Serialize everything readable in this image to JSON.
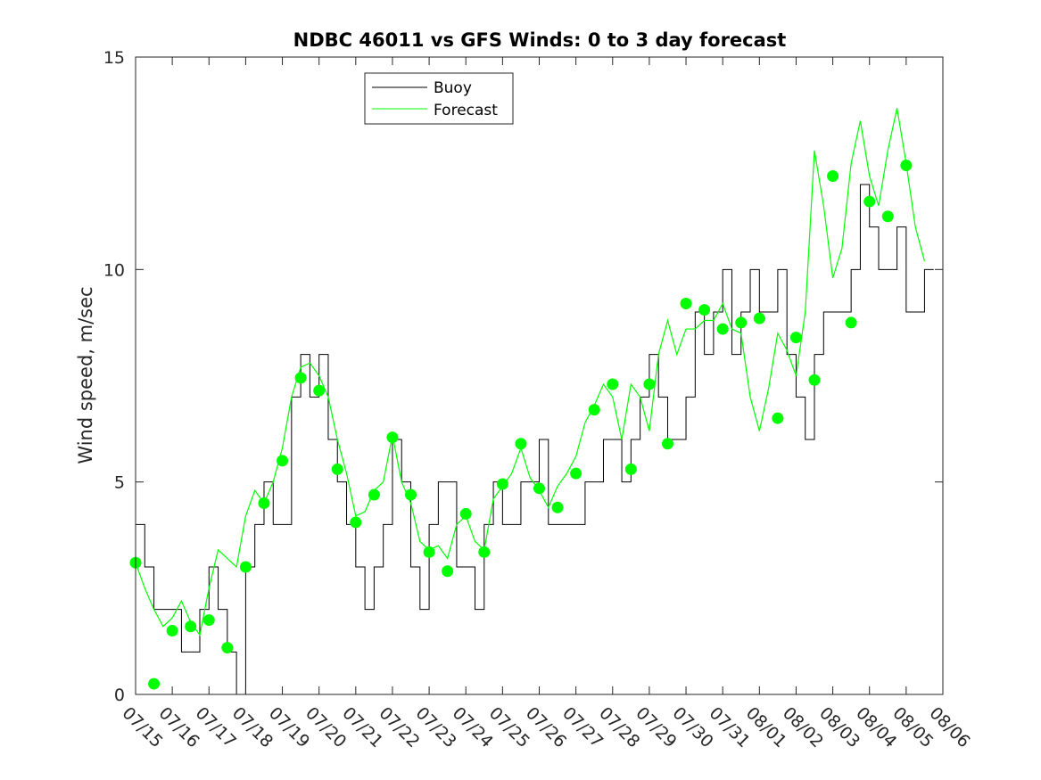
{
  "chart_data": {
    "type": "line",
    "title": "NDBC 46011 vs GFS Winds: 0 to 3 day forecast",
    "ylabel": "Wind speed, m/sec",
    "xlabel": "",
    "ylim": [
      0,
      15
    ],
    "yticks": [
      0,
      5,
      10,
      15
    ],
    "xticks": [
      "07/15",
      "07/16",
      "07/17",
      "07/18",
      "07/19",
      "07/20",
      "07/21",
      "07/22",
      "07/23",
      "07/24",
      "07/25",
      "07/26",
      "07/27",
      "07/28",
      "07/29",
      "07/30",
      "07/31",
      "08/01",
      "08/02",
      "08/03",
      "08/04",
      "08/05",
      "08/06"
    ],
    "legend": {
      "position": "top-left",
      "entries": [
        "Buoy",
        "Forecast"
      ]
    },
    "colors": {
      "buoy": "#000000",
      "forecast": "#00ff00",
      "axis": "#262626"
    },
    "series": [
      {
        "name": "Buoy",
        "x_days": [
          0.0,
          0.25,
          0.5,
          0.75,
          1.0,
          1.25,
          1.5,
          1.75,
          2.0,
          2.25,
          2.5,
          2.75,
          3.0,
          3.25,
          3.5,
          3.75,
          4.0,
          4.25,
          4.5,
          4.75,
          5.0,
          5.25,
          5.5,
          5.75,
          6.0,
          6.25,
          6.5,
          6.75,
          7.0,
          7.25,
          7.5,
          7.75,
          8.0,
          8.25,
          8.5,
          8.75,
          9.0,
          9.25,
          9.5,
          9.75,
          10.0,
          10.25,
          10.5,
          10.75,
          11.0,
          11.25,
          11.5,
          11.75,
          12.0,
          12.25,
          12.5,
          12.75,
          13.0,
          13.25,
          13.5,
          13.75,
          14.0,
          14.25,
          14.5,
          14.75,
          15.0,
          15.25,
          15.5,
          15.75,
          16.0,
          16.25,
          16.5,
          16.75,
          17.0,
          17.25,
          17.5,
          17.75,
          18.0,
          18.25,
          18.5,
          18.75,
          19.0,
          19.25,
          19.5,
          19.75,
          20.0,
          20.25,
          20.5,
          20.75,
          21.0,
          21.25,
          21.5
        ],
        "values": [
          4,
          3,
          2,
          2,
          2,
          1,
          1,
          2,
          3,
          2,
          1,
          0,
          3,
          4,
          5,
          4,
          4,
          7,
          8,
          7,
          8,
          6,
          5,
          4,
          3,
          2,
          3,
          4,
          6,
          5,
          3,
          2,
          4,
          5,
          5,
          3,
          3,
          2,
          4,
          5,
          4,
          4,
          5,
          5,
          6,
          4,
          4,
          4,
          4,
          5,
          5,
          6,
          6,
          5,
          6,
          7,
          8,
          7,
          6,
          6,
          7,
          9,
          8,
          9,
          10,
          8,
          9,
          10,
          9,
          9,
          10,
          8,
          7,
          6,
          8,
          9,
          9,
          9,
          10,
          12,
          11,
          10,
          10,
          11,
          9,
          9,
          10
        ]
      },
      {
        "name": "Forecast",
        "x_days": [
          0.0,
          0.25,
          0.5,
          0.75,
          1.0,
          1.25,
          1.5,
          1.75,
          2.0,
          2.25,
          2.5,
          2.75,
          3.0,
          3.25,
          3.5,
          3.75,
          4.0,
          4.25,
          4.5,
          4.75,
          5.0,
          5.25,
          5.5,
          5.75,
          6.0,
          6.25,
          6.5,
          6.75,
          7.0,
          7.25,
          7.5,
          7.75,
          8.0,
          8.25,
          8.5,
          8.75,
          9.0,
          9.25,
          9.5,
          9.75,
          10.0,
          10.25,
          10.5,
          10.75,
          11.0,
          11.25,
          11.5,
          11.75,
          12.0,
          12.25,
          12.5,
          12.75,
          13.0,
          13.25,
          13.5,
          13.75,
          14.0,
          14.25,
          14.5,
          14.75,
          15.0,
          15.25,
          15.5,
          15.75,
          16.0,
          16.25,
          16.5,
          16.75,
          17.0,
          17.25,
          17.5,
          17.75,
          18.0,
          18.25,
          18.5,
          18.75,
          19.0,
          19.25,
          19.5,
          19.75,
          20.0,
          20.25,
          20.5,
          20.75,
          21.0,
          21.25,
          21.5
        ],
        "values": [
          3.1,
          2.5,
          2.0,
          1.6,
          1.8,
          2.2,
          1.7,
          1.4,
          2.5,
          3.4,
          3.2,
          3.0,
          4.2,
          4.8,
          4.5,
          5.0,
          5.8,
          7.0,
          7.7,
          7.8,
          7.5,
          7.0,
          6.0,
          5.2,
          4.2,
          4.3,
          4.8,
          5.0,
          6.1,
          5.0,
          4.5,
          3.6,
          3.4,
          3.5,
          3.2,
          4.0,
          4.2,
          3.6,
          3.4,
          4.6,
          4.9,
          5.2,
          5.8,
          5.1,
          4.8,
          4.4,
          4.9,
          5.2,
          5.6,
          6.4,
          6.8,
          7.3,
          7.0,
          6.0,
          7.3,
          7.0,
          6.2,
          8.0,
          8.8,
          8.0,
          8.6,
          8.6,
          8.8,
          8.8,
          9.2,
          8.6,
          8.5,
          7.0,
          6.2,
          7.2,
          8.5,
          8.1,
          7.5,
          9.0,
          12.8,
          11.5,
          9.8,
          10.5,
          12.5,
          13.5,
          12.2,
          11.5,
          12.8,
          13.8,
          12.5,
          11.0,
          10.2
        ]
      },
      {
        "name": "",
        "type": "scatter",
        "x_days": [
          0.0,
          0.5,
          1.0,
          1.5,
          2.0,
          2.5,
          3.0,
          3.5,
          4.0,
          4.5,
          5.0,
          5.5,
          6.0,
          6.5,
          7.0,
          7.5,
          8.0,
          8.5,
          9.0,
          9.5,
          10.0,
          10.5,
          11.0,
          11.5,
          12.0,
          12.5,
          13.0,
          13.5,
          14.0,
          14.5,
          15.0,
          15.5,
          16.0,
          16.5,
          17.0,
          17.5,
          18.0,
          18.5,
          19.0,
          19.5,
          20.0,
          20.5,
          21.0
        ],
        "values": [
          3.1,
          0.25,
          1.5,
          1.6,
          1.75,
          1.1,
          3.0,
          4.5,
          5.5,
          7.45,
          7.15,
          5.3,
          4.05,
          4.7,
          6.05,
          4.7,
          3.35,
          2.9,
          4.25,
          3.35,
          4.95,
          5.9,
          4.85,
          4.4,
          5.2,
          6.7,
          7.3,
          5.3,
          7.3,
          5.9,
          9.2,
          9.05,
          8.6,
          8.75,
          8.85,
          6.5,
          8.4,
          7.4,
          12.2,
          8.75,
          11.6,
          11.25,
          12.45
        ]
      }
    ]
  }
}
